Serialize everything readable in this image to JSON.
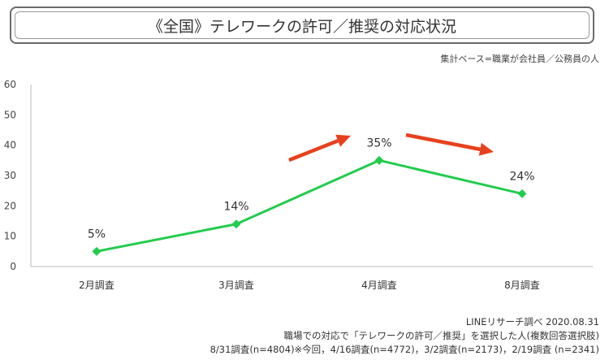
{
  "header": {
    "title": "《全国》テレワークの許可／推奨の対応状況",
    "base_note": "集計ベース=職業が会社員／公務員の人"
  },
  "chart_data": {
    "type": "line",
    "title": "《全国》テレワークの許可／推奨の対応状況",
    "categories": [
      "2月調査",
      "3月調査",
      "4月調査",
      "8月調査"
    ],
    "series": [
      {
        "name": "テレワークの許可／推奨",
        "values": [
          5,
          14,
          35,
          24
        ],
        "labels": [
          "5%",
          "14%",
          "35%",
          "24%"
        ]
      }
    ],
    "ylim": [
      0,
      60
    ],
    "yticks": [
      0,
      10,
      20,
      30,
      40,
      50,
      60
    ],
    "ytick_labels": [
      "0",
      "10",
      "20",
      "30",
      "40",
      "50",
      "60"
    ],
    "xlabel": "",
    "ylabel": "",
    "annotations": [
      "increase-arrow",
      "decrease-arrow"
    ]
  },
  "colors": {
    "line": "#22cc4d",
    "arrow": "#e8401c",
    "axis": "#bbbbbb",
    "text": "#333333"
  },
  "footer": {
    "source": "LINEリサーチ調べ 2020.08.31",
    "note": "職場での対応で「テレワークの許可／推奨」を選択した人(複数回答選択肢)",
    "samples": "8/31調査(n=4804)※今回，4/16調査(n=4772)，3/2調査(n=2173)，2/19調査 (n=2341)"
  }
}
